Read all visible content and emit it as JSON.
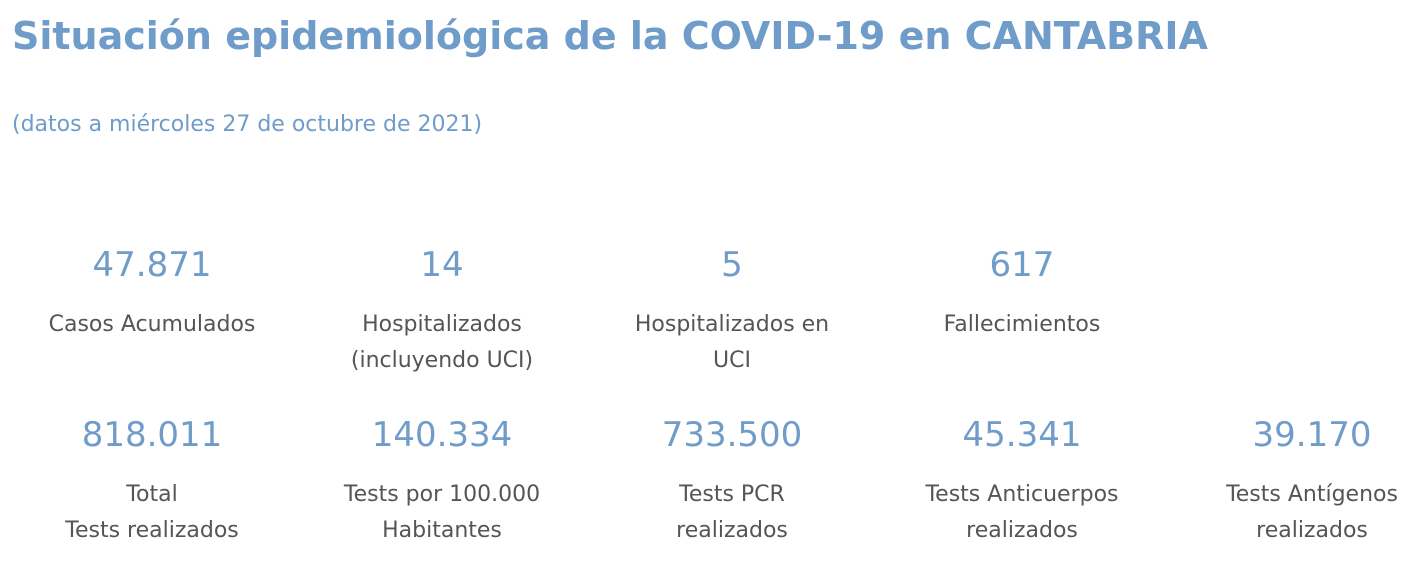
{
  "header": {
    "title": "Situación epidemiológica de la COVID-19 en CANTABRIA",
    "subtitle": "(datos a miércoles 27 de octubre de 2021)"
  },
  "stats_row1": [
    {
      "value": "47.871",
      "label": [
        "Casos Acumulados"
      ]
    },
    {
      "value": "14",
      "label": [
        "Hospitalizados",
        "(incluyendo UCI)"
      ]
    },
    {
      "value": "5",
      "label": [
        "Hospitalizados en",
        "UCI"
      ]
    },
    {
      "value": "617",
      "label": [
        "Fallecimientos"
      ]
    }
  ],
  "stats_row2": [
    {
      "value": "818.011",
      "label": [
        "Total",
        "Tests realizados"
      ]
    },
    {
      "value": "140.334",
      "label": [
        "Tests por 100.000",
        "Habitantes"
      ]
    },
    {
      "value": "733.500",
      "label": [
        "Tests PCR",
        "realizados"
      ]
    },
    {
      "value": "45.341",
      "label": [
        "Tests Anticuerpos",
        "realizados"
      ]
    },
    {
      "value": "39.170",
      "label": [
        "Tests Antígenos",
        "realizados"
      ]
    }
  ],
  "colors": {
    "accent": "#6f9cc8",
    "label_text": "#555555"
  }
}
